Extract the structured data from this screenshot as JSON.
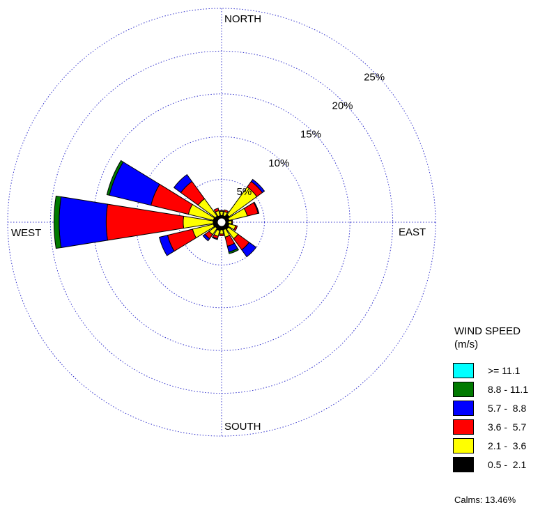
{
  "chart_data": {
    "type": "windrose",
    "direction_labels": {
      "north": "NORTH",
      "east": "EAST",
      "south": "SOUTH",
      "west": "WEST"
    },
    "ring_values": [
      5,
      10,
      15,
      20,
      25
    ],
    "ring_labels": [
      "5%",
      "10%",
      "15%",
      "20%",
      "25%"
    ],
    "grid": true,
    "legend_title_lines": [
      "WIND SPEED",
      "(m/s)"
    ],
    "legend_position": "bottom-right",
    "bins": [
      {
        "label": ">= 11.1",
        "color": "#00FFFF"
      },
      {
        "label": "8.8 - 11.1",
        "color": "#007A00"
      },
      {
        "label": "5.7 -  8.8",
        "color": "#0000FF"
      },
      {
        "label": "3.6 -  5.7",
        "color": "#FF0000"
      },
      {
        "label": "2.1 -  3.6",
        "color": "#FFFF00"
      },
      {
        "label": "0.5 -  2.1",
        "color": "#000000"
      }
    ],
    "bin_draw_order_inner_to_outer": [
      "0.5 -  2.1",
      "2.1 -  3.6",
      "3.6 -  5.7",
      "5.7 -  8.8",
      "8.8 - 11.1",
      ">= 11.1"
    ],
    "sectors": [
      {
        "direction_deg": 0,
        "bins_inner_to_outer": [
          0.3,
          0.5,
          0.1,
          0,
          0,
          0
        ]
      },
      {
        "direction_deg": 22.5,
        "bins_inner_to_outer": [
          0.3,
          0.5,
          0.2,
          0,
          0,
          0
        ]
      },
      {
        "direction_deg": 45,
        "bins_inner_to_outer": [
          0.6,
          4.0,
          0.8,
          0.3,
          0,
          0
        ]
      },
      {
        "direction_deg": 67.5,
        "bins_inner_to_outer": [
          0.4,
          2.2,
          1.3,
          0.1,
          0,
          0
        ]
      },
      {
        "direction_deg": 90,
        "bins_inner_to_outer": [
          0.3,
          0.4,
          0.1,
          0,
          0,
          0
        ]
      },
      {
        "direction_deg": 112.5,
        "bins_inner_to_outer": [
          0.4,
          0.8,
          0.2,
          0,
          0,
          0
        ]
      },
      {
        "direction_deg": 135,
        "bins_inner_to_outer": [
          0.5,
          1.4,
          1.6,
          1.0,
          0,
          0
        ]
      },
      {
        "direction_deg": 157.5,
        "bins_inner_to_outer": [
          0.4,
          0.9,
          1.1,
          0.7,
          0.2,
          0
        ]
      },
      {
        "direction_deg": 180,
        "bins_inner_to_outer": [
          0.4,
          0.5,
          0.2,
          0,
          0,
          0
        ]
      },
      {
        "direction_deg": 202.5,
        "bins_inner_to_outer": [
          0.5,
          0.7,
          0.3,
          0.1,
          0,
          0
        ]
      },
      {
        "direction_deg": 225,
        "bins_inner_to_outer": [
          0.4,
          0.9,
          0.6,
          0.3,
          0,
          0
        ]
      },
      {
        "direction_deg": 247.5,
        "bins_inner_to_outer": [
          0.5,
          2.5,
          3.0,
          1.0,
          0,
          0
        ]
      },
      {
        "direction_deg": 270,
        "bins_inner_to_outer": [
          0.5,
          3.5,
          9.0,
          5.5,
          0.6,
          0
        ]
      },
      {
        "direction_deg": 292.5,
        "bins_inner_to_outer": [
          0.5,
          3.0,
          4.5,
          5.0,
          0.3,
          0
        ]
      },
      {
        "direction_deg": 315,
        "bins_inner_to_outer": [
          0.4,
          2.5,
          2.5,
          1.0,
          0,
          0
        ]
      },
      {
        "direction_deg": 337.5,
        "bins_inner_to_outer": [
          0.3,
          0.6,
          0.3,
          0,
          0,
          0
        ]
      }
    ],
    "calms_label": "Calms: 13.46%"
  }
}
